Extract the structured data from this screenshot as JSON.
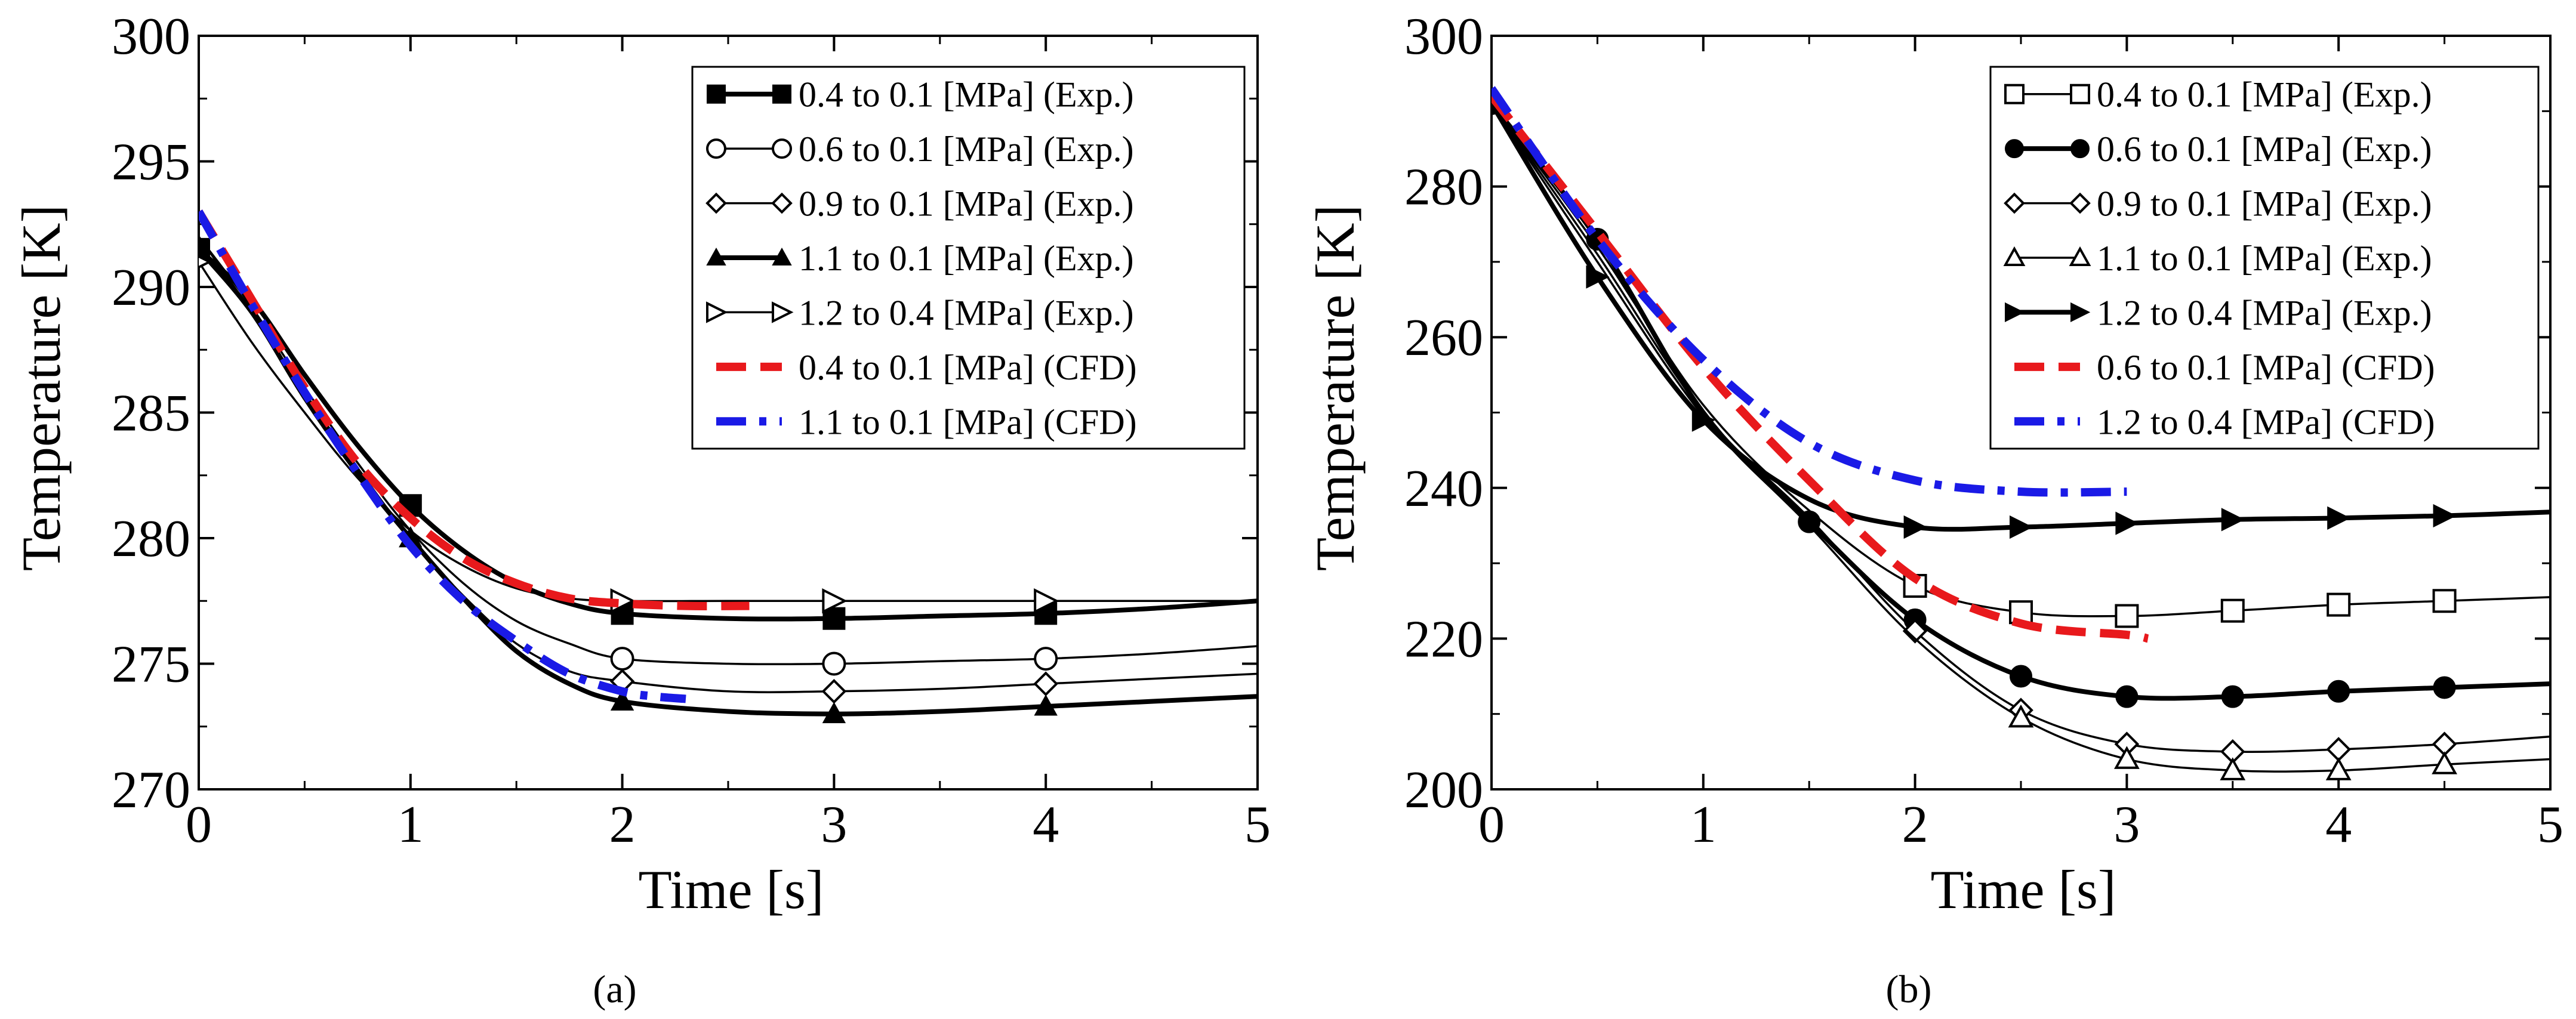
{
  "figure": {
    "panel_label_a": "(a)",
    "panel_label_b": "(b)"
  },
  "chart_data": [
    {
      "type": "line",
      "panel": "(a)",
      "title": "",
      "xlabel": "Time [s]",
      "ylabel": "Temperature [K]",
      "xlim": [
        0,
        5
      ],
      "ylim": [
        270,
        300
      ],
      "xticks": [
        0,
        1,
        2,
        3,
        4,
        5
      ],
      "yticks": [
        270,
        275,
        280,
        285,
        290,
        295,
        300
      ],
      "grid": false,
      "legend_position": "top-right",
      "series": [
        {
          "name": "0.4 to 0.1 [MPa] (Exp.)",
          "color": "#000000",
          "style": "thick-solid",
          "marker": "square-filled",
          "x": [
            0,
            0.25,
            0.5,
            0.75,
            1.0,
            1.25,
            1.5,
            1.75,
            2.0,
            2.5,
            3.0,
            3.5,
            4.0,
            4.5,
            5.0
          ],
          "y": [
            291.5,
            289.5,
            286.5,
            283.7,
            281.3,
            279.5,
            278.2,
            277.4,
            277.0,
            276.8,
            276.8,
            276.9,
            277.0,
            277.2,
            277.5
          ],
          "marker_x": [
            0,
            1,
            2,
            3,
            4
          ]
        },
        {
          "name": "0.6 to 0.1 [MPa] (Exp.)",
          "color": "#000000",
          "style": "thin-solid",
          "marker": "circle-open",
          "x": [
            0,
            0.25,
            0.5,
            0.75,
            1.0,
            1.25,
            1.5,
            1.75,
            2.0,
            2.5,
            3.0,
            3.5,
            4.0,
            4.5,
            5.0
          ],
          "y": [
            292.0,
            289.2,
            286.0,
            283.0,
            280.3,
            278.2,
            276.7,
            275.8,
            275.2,
            275.0,
            275.0,
            275.1,
            275.2,
            275.4,
            275.7
          ],
          "marker_x": [
            2,
            3,
            4
          ]
        },
        {
          "name": "0.9 to 0.1 [MPa] (Exp.)",
          "color": "#000000",
          "style": "thin-solid",
          "marker": "diamond-open",
          "x": [
            0,
            0.25,
            0.5,
            0.75,
            1.0,
            1.25,
            1.5,
            1.75,
            2.0,
            2.5,
            3.0,
            3.5,
            4.0,
            4.5,
            5.0
          ],
          "y": [
            292.0,
            289.0,
            285.8,
            282.8,
            280.0,
            277.7,
            275.8,
            274.7,
            274.3,
            273.9,
            273.9,
            274.0,
            274.2,
            274.4,
            274.6
          ],
          "marker_x": [
            2,
            3,
            4
          ]
        },
        {
          "name": "1.1 to 0.1 [MPa] (Exp.)",
          "color": "#000000",
          "style": "thick-solid",
          "marker": "triangle-filled",
          "x": [
            0,
            0.25,
            0.5,
            0.75,
            1.0,
            1.25,
            1.5,
            1.75,
            2.0,
            2.5,
            3.0,
            3.5,
            4.0,
            4.5,
            5.0
          ],
          "y": [
            291.5,
            289.0,
            285.6,
            282.6,
            280.0,
            277.6,
            275.5,
            274.2,
            273.5,
            273.1,
            273.0,
            273.1,
            273.3,
            273.5,
            273.7
          ],
          "marker_x": [
            0,
            1,
            2,
            3,
            4
          ]
        },
        {
          "name": "1.2 to 0.4 [MPa] (Exp.)",
          "color": "#000000",
          "style": "thin-solid",
          "marker": "triangle-right-open",
          "x": [
            0,
            0.25,
            0.5,
            0.75,
            1.0,
            1.25,
            1.5,
            1.75,
            2.0,
            2.5,
            3.0,
            3.5,
            4.0,
            4.5,
            5.0
          ],
          "y": [
            291.0,
            287.8,
            285.0,
            282.4,
            280.3,
            278.9,
            278.0,
            277.6,
            277.5,
            277.5,
            277.5,
            277.5,
            277.5,
            277.5,
            277.5
          ],
          "marker_x": [
            0,
            2,
            3,
            4
          ]
        },
        {
          "name": "0.4 to 0.1 [MPa] (CFD)",
          "color": "#e8191c",
          "style": "dash",
          "marker": "none",
          "x": [
            0,
            0.25,
            0.5,
            0.75,
            1.0,
            1.25,
            1.5,
            1.75,
            2.0,
            2.3,
            2.6
          ],
          "y": [
            293.0,
            289.5,
            286.0,
            283.0,
            280.8,
            279.2,
            278.2,
            277.6,
            277.4,
            277.3,
            277.3
          ],
          "marker_x": []
        },
        {
          "name": "1.1 to 0.1 [MPa] (CFD)",
          "color": "#1a1ae6",
          "style": "dash-dot",
          "marker": "none",
          "x": [
            0,
            0.25,
            0.5,
            0.75,
            1.0,
            1.25,
            1.5,
            1.75,
            2.0,
            2.15,
            2.3
          ],
          "y": [
            293.0,
            289.3,
            285.8,
            282.6,
            279.7,
            277.5,
            275.9,
            274.6,
            273.9,
            273.7,
            273.6
          ],
          "marker_x": []
        }
      ]
    },
    {
      "type": "line",
      "panel": "(b)",
      "title": "",
      "xlabel": "Time [s]",
      "ylabel": "Temperature [K]",
      "xlim": [
        0,
        5
      ],
      "ylim": [
        200,
        300
      ],
      "xticks": [
        0,
        1,
        2,
        3,
        4,
        5
      ],
      "yticks": [
        200,
        220,
        240,
        260,
        280,
        300
      ],
      "grid": false,
      "legend_position": "top-right",
      "series": [
        {
          "name": "0.4 to 0.1 [MPa] (Exp.)",
          "color": "#000000",
          "style": "thin-solid",
          "marker": "square-open",
          "x": [
            0,
            0.5,
            1.0,
            1.5,
            2.0,
            2.5,
            3.0,
            3.5,
            4.0,
            4.5,
            5.0
          ],
          "y": [
            291.0,
            272.0,
            251.0,
            237.0,
            227.0,
            223.5,
            223.0,
            223.7,
            224.5,
            225.0,
            225.5
          ],
          "marker_x": [
            2,
            2.5,
            3,
            3.5,
            4,
            4.5
          ]
        },
        {
          "name": "0.6 to 0.1 [MPa] (Exp.)",
          "color": "#000000",
          "style": "thick-solid",
          "marker": "circle-filled",
          "x": [
            0,
            0.5,
            1.0,
            1.5,
            2.0,
            2.5,
            3.0,
            3.5,
            4.0,
            4.5,
            5.0
          ],
          "y": [
            291.0,
            273.0,
            250.0,
            235.5,
            222.5,
            215.0,
            212.3,
            212.3,
            213.0,
            213.5,
            214.0
          ],
          "marker_x": [
            0,
            0.5,
            1.5,
            2,
            2.5,
            3,
            3.5,
            4,
            4.5
          ]
        },
        {
          "name": "0.9 to 0.1 [MPa] (Exp.)",
          "color": "#000000",
          "style": "thin-solid",
          "marker": "diamond-open",
          "x": [
            0,
            0.5,
            1.0,
            1.5,
            2.0,
            2.5,
            3.0,
            3.5,
            4.0,
            4.5,
            5.0
          ],
          "y": [
            291.0,
            271.0,
            250.0,
            236.0,
            221.0,
            210.5,
            206.0,
            205.0,
            205.3,
            206.0,
            207.0
          ],
          "marker_x": [
            2,
            2.5,
            3,
            3.5,
            4,
            4.5
          ]
        },
        {
          "name": "1.1 to 0.1 [MPa] (Exp.)",
          "color": "#000000",
          "style": "thin-solid",
          "marker": "triangle-open",
          "x": [
            0,
            0.5,
            1.0,
            1.5,
            2.0,
            2.5,
            3.0,
            3.5,
            4.0,
            4.5,
            5.0
          ],
          "y": [
            291.0,
            270.0,
            249.5,
            235.0,
            220.0,
            209.5,
            204.0,
            202.5,
            202.5,
            203.3,
            204.0
          ],
          "marker_x": [
            2.5,
            3,
            3.5,
            4,
            4.5
          ]
        },
        {
          "name": "1.2 to 0.4 [MPa] (Exp.)",
          "color": "#000000",
          "style": "thick-solid",
          "marker": "triangle-right-filled",
          "x": [
            0,
            0.5,
            1.0,
            1.5,
            2.0,
            2.5,
            3.0,
            3.5,
            4.0,
            4.5,
            5.0
          ],
          "y": [
            291.0,
            268.0,
            249.0,
            238.5,
            234.8,
            234.8,
            235.3,
            235.8,
            236.0,
            236.3,
            236.8
          ],
          "marker_x": [
            0.5,
            1,
            2,
            2.5,
            3,
            3.5,
            4,
            4.5
          ]
        },
        {
          "name": "0.6 to 0.1 [MPa] (CFD)",
          "color": "#e8191c",
          "style": "dash",
          "marker": "none",
          "x": [
            0,
            0.5,
            1.0,
            1.5,
            2.0,
            2.5,
            3.0,
            3.1
          ],
          "y": [
            292.0,
            274.0,
            256.0,
            241.0,
            228.0,
            222.0,
            220.5,
            220.0
          ],
          "marker_x": []
        },
        {
          "name": "1.2 to 0.4 [MPa] (CFD)",
          "color": "#1a1ae6",
          "style": "dash-dot",
          "marker": "none",
          "x": [
            0,
            0.5,
            1.0,
            1.5,
            2.0,
            2.5,
            3.0
          ],
          "y": [
            293.0,
            273.0,
            257.0,
            246.0,
            241.0,
            239.5,
            239.5
          ],
          "marker_x": []
        }
      ]
    }
  ]
}
